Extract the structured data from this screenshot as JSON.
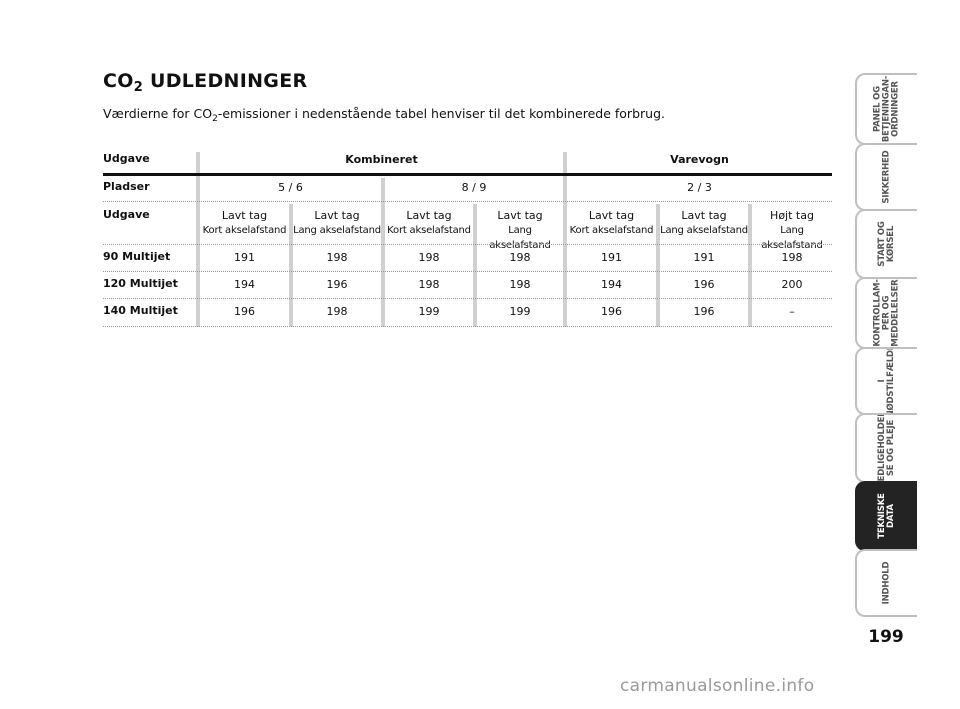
{
  "heading": {
    "co": "CO",
    "sub": "2",
    "rest": " UDLEDNINGER"
  },
  "intro": {
    "before": "Værdierne for CO",
    "sub": "2",
    "after": "-emissioner i nedenstående tabel henviser til det kombinerede forbrug."
  },
  "table": {
    "header": {
      "label": "Udgave",
      "group1": "Kombineret",
      "group2": "Varevogn"
    },
    "seats": {
      "label": "Pladser",
      "values": [
        "5 / 6",
        "8 / 9",
        "2 / 3"
      ]
    },
    "variant": {
      "label": "Udgave",
      "columns": [
        {
          "line1": "Lavt tag",
          "line2": "Kort akselafstand"
        },
        {
          "line1": "Lavt tag",
          "line2": "Lang akselafstand"
        },
        {
          "line1": "Lavt tag",
          "line2": "Kort akselafstand"
        },
        {
          "line1": "Lavt tag",
          "line2": "Lang akselafstand"
        },
        {
          "line1": "Lavt tag",
          "line2": "Kort akselafstand"
        },
        {
          "line1": "Lavt tag",
          "line2": "Lang akselafstand"
        },
        {
          "line1": "Højt tag",
          "line2": "Lang akselafstand"
        }
      ]
    },
    "rows": [
      {
        "label": "90 Multijet",
        "values": [
          "191",
          "198",
          "198",
          "198",
          "191",
          "191",
          "198"
        ]
      },
      {
        "label": "120 Multijet",
        "values": [
          "194",
          "196",
          "198",
          "198",
          "194",
          "196",
          "200"
        ]
      },
      {
        "label": "140 Multijet",
        "values": [
          "196",
          "198",
          "199",
          "199",
          "196",
          "196",
          "–"
        ]
      }
    ]
  },
  "tabs": [
    {
      "label": "PANEL OG\nBETJENINGAN-\nORDNINGER",
      "active": false
    },
    {
      "label": "SIKKERHED",
      "active": false
    },
    {
      "label": "START OG\nKØRSEL",
      "active": false
    },
    {
      "label": "KONTROLLAM-\nPER OG\nMEDDELELSER",
      "active": false
    },
    {
      "label": "I\nNØDSTILFÆLDE",
      "active": false
    },
    {
      "label": "VEDLIGEHOLDEL-\nSE OG PLEJE",
      "active": false
    },
    {
      "label": "TEKNISKE\nDATA",
      "active": true
    },
    {
      "label": "INDHOLD",
      "active": false
    }
  ],
  "page_number": "199",
  "watermark": "carmanualsonline.info"
}
